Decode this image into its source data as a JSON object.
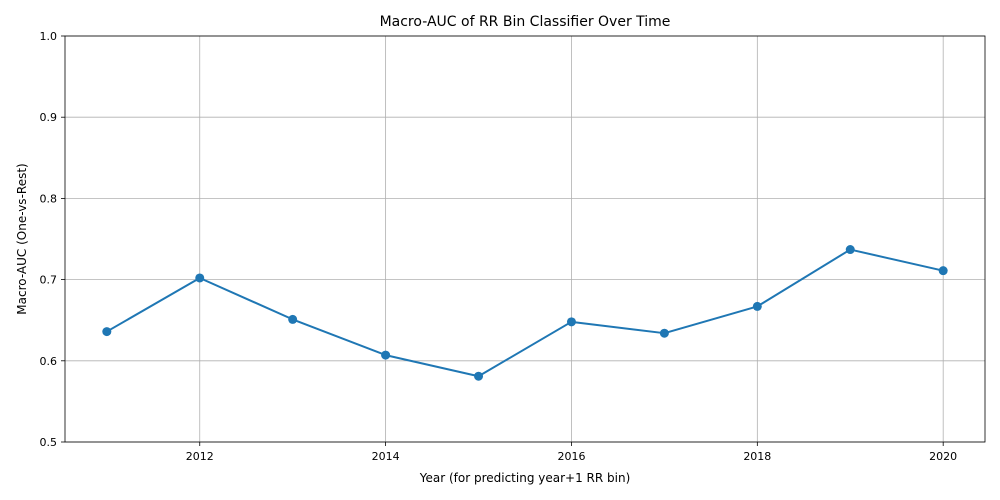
{
  "chart_data": {
    "type": "line",
    "title": "Macro-AUC of RR Bin Classifier Over Time",
    "xlabel": "Year (for predicting year+1 RR bin)",
    "ylabel": "Macro-AUC (One-vs-Rest)",
    "xlim": [
      2010.55,
      2020.45
    ],
    "ylim": [
      0.5,
      1.0
    ],
    "xticks": [
      2012,
      2014,
      2016,
      2018,
      2020
    ],
    "yticks": [
      0.5,
      0.6,
      0.7,
      0.8,
      0.9,
      1.0
    ],
    "grid": true,
    "color": "#1f77b4",
    "series": [
      {
        "x": [
          2011,
          2012,
          2013,
          2014,
          2015,
          2016,
          2017,
          2018,
          2019,
          2020
        ],
        "values": [
          0.636,
          0.702,
          0.651,
          0.607,
          0.581,
          0.648,
          0.634,
          0.667,
          0.737,
          0.711
        ]
      }
    ]
  }
}
